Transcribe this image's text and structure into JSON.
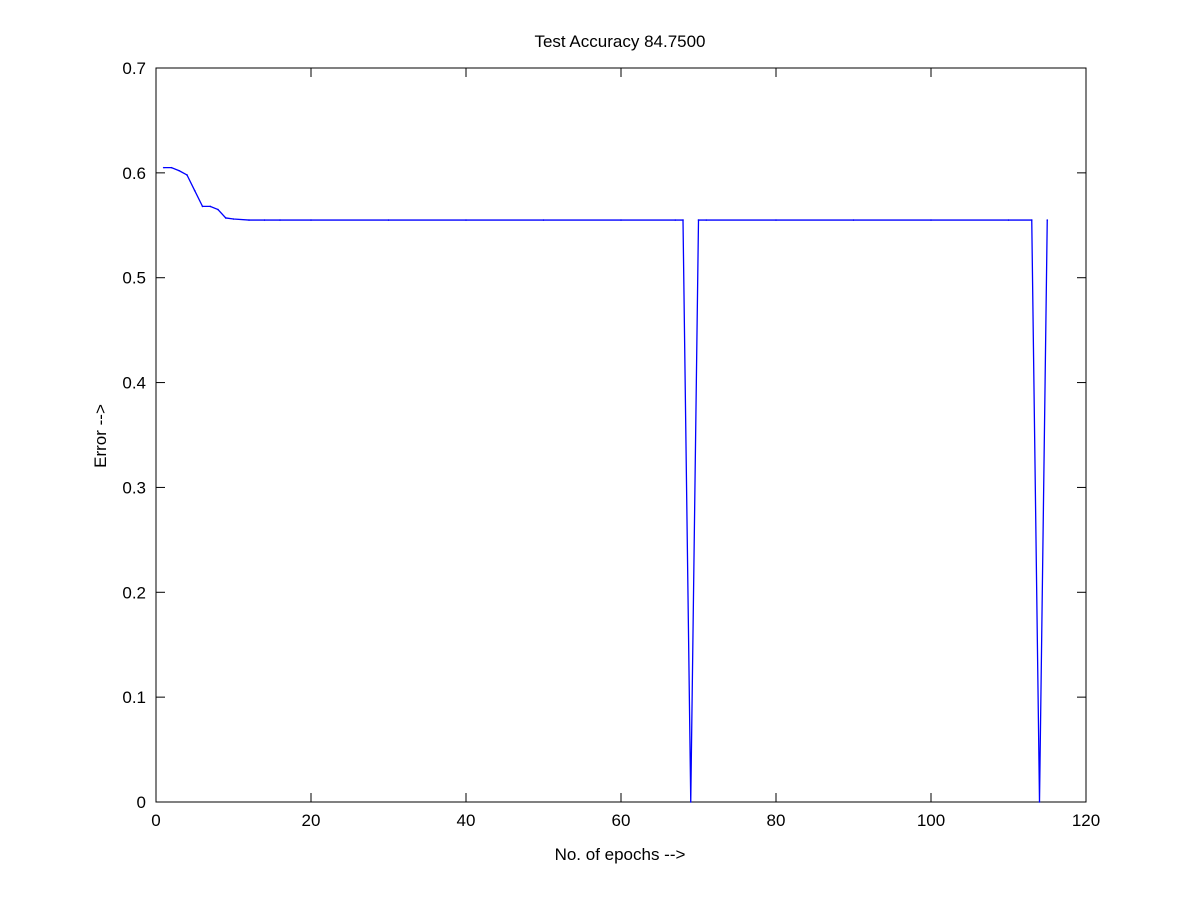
{
  "chart_data": {
    "type": "line",
    "title": "Test Accuracy 84.7500",
    "xlabel": "No. of epochs -->",
    "ylabel": "Error -->",
    "xlim": [
      0,
      120
    ],
    "ylim": [
      0,
      0.7
    ],
    "xticks": [
      0,
      20,
      40,
      60,
      80,
      100,
      120
    ],
    "yticks": [
      0,
      0.1,
      0.2,
      0.3,
      0.4,
      0.5,
      0.6,
      0.7
    ],
    "xtick_labels": [
      "0",
      "20",
      "40",
      "60",
      "80",
      "100",
      "120"
    ],
    "ytick_labels": [
      "0",
      "0.1",
      "0.2",
      "0.3",
      "0.4",
      "0.5",
      "0.6",
      "0.7"
    ],
    "grid": false,
    "line_color": "#0000ff",
    "axis_color": "#000000",
    "series": [
      {
        "x": [
          1,
          2,
          3,
          4,
          5,
          6,
          7,
          8,
          9,
          10,
          12,
          14,
          16,
          20,
          30,
          40,
          50,
          60,
          67,
          68,
          69,
          70,
          71,
          80,
          90,
          100,
          110,
          113,
          114,
          115
        ],
        "y": [
          0.605,
          0.605,
          0.602,
          0.598,
          0.583,
          0.568,
          0.568,
          0.565,
          0.557,
          0.556,
          0.555,
          0.555,
          0.555,
          0.555,
          0.555,
          0.555,
          0.555,
          0.555,
          0.555,
          0.555,
          0.0,
          0.555,
          0.555,
          0.555,
          0.555,
          0.555,
          0.555,
          0.555,
          0.0,
          0.555
        ]
      }
    ]
  }
}
